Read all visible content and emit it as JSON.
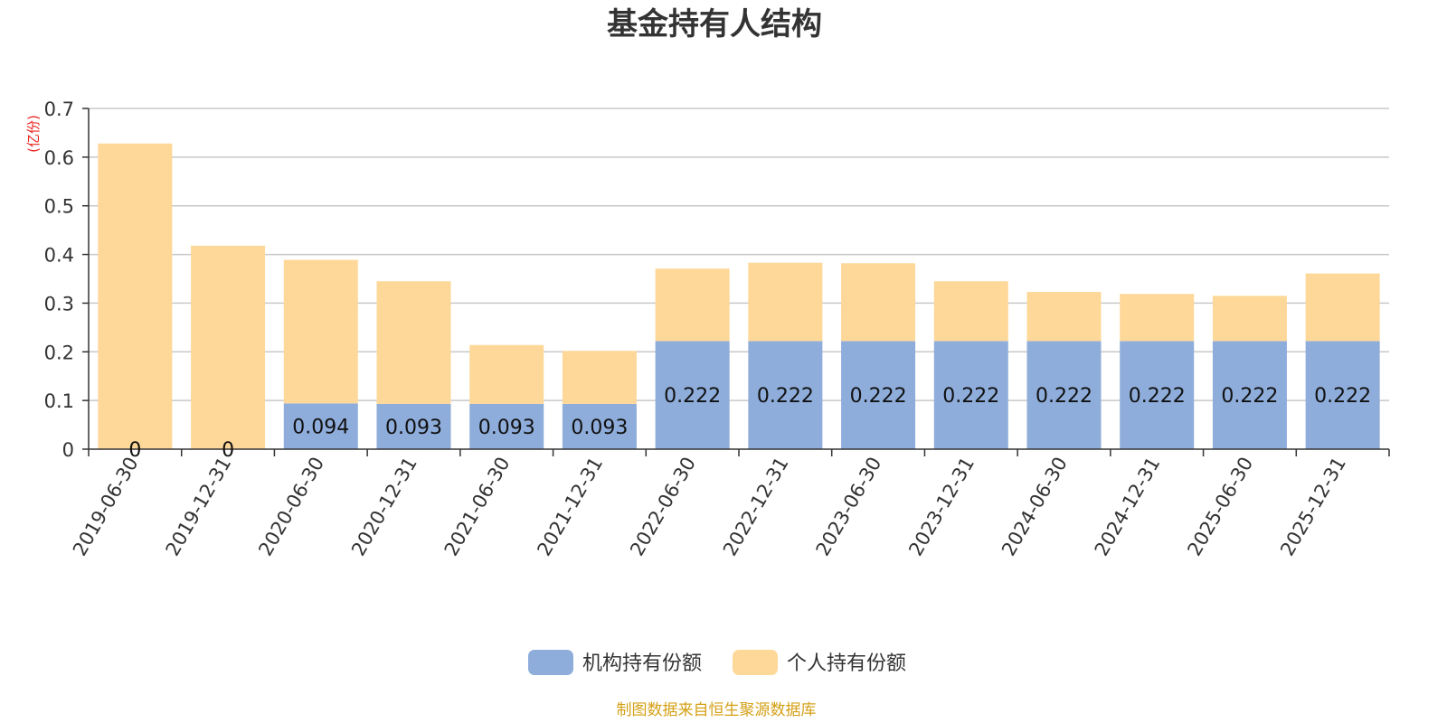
{
  "chart_data": {
    "type": "bar",
    "stacked": true,
    "title": "基金持有人结构",
    "ylabel": "(亿份)",
    "ylim": [
      0,
      0.7
    ],
    "yticks": [
      "0",
      "0.1",
      "0.2",
      "0.3",
      "0.4",
      "0.5",
      "0.6",
      "0.7"
    ],
    "categories": [
      "2019-06-30",
      "2019-12-31",
      "2020-06-30",
      "2020-12-31",
      "2021-06-30",
      "2021-12-31",
      "2022-06-30",
      "2022-12-31",
      "2023-06-30",
      "2023-12-31",
      "2024-06-30",
      "2024-12-31",
      "2025-06-30",
      "2025-12-31"
    ],
    "series": [
      {
        "name": "机构持有份额",
        "color": "#8eaddb",
        "values": [
          0,
          0,
          0.094,
          0.093,
          0.093,
          0.093,
          0.222,
          0.222,
          0.222,
          0.222,
          0.222,
          0.222,
          0.222,
          0.222
        ],
        "labels": [
          "0",
          "0",
          "0.094",
          "0.093",
          "0.093",
          "0.093",
          "0.222",
          "0.222",
          "0.222",
          "0.222",
          "0.222",
          "0.222",
          "0.222",
          "0.222"
        ]
      },
      {
        "name": "个人持有份额",
        "color": "#fed899",
        "values": [
          0.628,
          0.418,
          0.295,
          0.252,
          0.121,
          0.109,
          0.149,
          0.161,
          0.16,
          0.123,
          0.101,
          0.097,
          0.093,
          0.139
        ]
      }
    ],
    "legend_position": "bottom",
    "grid": true,
    "source_note": "制图数据来自恒生聚源数据库"
  },
  "colors": {
    "axis": "#333333",
    "grid": "#c8c8c8",
    "ylabel": "#e8251f",
    "source": "#d4a017"
  }
}
